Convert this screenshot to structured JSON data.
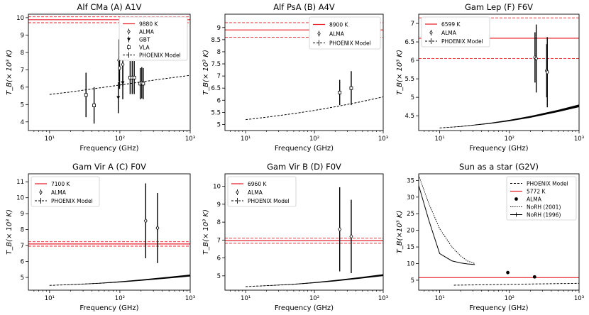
{
  "chart_data": [
    {
      "type": "line",
      "title": "Alf CMa (A)  A1V",
      "xlabel": "Frequency (GHz)",
      "ylabel": "T_B(× 10³ K)",
      "xscale": "log",
      "xlim": [
        5,
        1000
      ],
      "ylim": [
        3.5,
        10.2
      ],
      "xticks": [
        {
          "v": 10,
          "label": "10¹"
        },
        {
          "v": 100,
          "label": "10²"
        },
        {
          "v": 1000,
          "label": "10³"
        }
      ],
      "yticks": [
        4,
        5,
        6,
        7,
        8,
        9,
        10
      ],
      "hlines": [
        {
          "y": 9.88,
          "style": "solid",
          "color": "#e8222a"
        },
        {
          "y": 10.05,
          "style": "dashed",
          "color": "#e8222a"
        },
        {
          "y": 9.71,
          "style": "dashed",
          "color": "#e8222a"
        }
      ],
      "model": {
        "x": [
          10,
          20,
          50,
          100,
          200,
          500,
          1000
        ],
        "y": [
          5.58,
          5.72,
          5.95,
          6.12,
          6.3,
          6.52,
          6.68
        ],
        "band": 0
      },
      "points": [
        {
          "x": 33,
          "y": 5.55,
          "err": 1.28,
          "marker": "square"
        },
        {
          "x": 43,
          "y": 4.95,
          "err": 1.05,
          "marker": "square"
        },
        {
          "x": 97,
          "y": 7.55,
          "err": 1.2,
          "marker": "diamond"
        },
        {
          "x": 99,
          "y": 7.1,
          "err": 1.2,
          "marker": "diamond"
        },
        {
          "x": 95,
          "y": 5.4,
          "err": 0.9,
          "marker": "triangle"
        },
        {
          "x": 110,
          "y": 7.3,
          "err": 1.25,
          "marker": "diamond"
        },
        {
          "x": 110,
          "y": 6.25,
          "err": 0.95,
          "marker": "triangle"
        },
        {
          "x": 140,
          "y": 6.55,
          "err": 0.95,
          "marker": "square"
        },
        {
          "x": 150,
          "y": 6.55,
          "err": 0.95,
          "marker": "square"
        },
        {
          "x": 160,
          "y": 6.55,
          "err": 0.95,
          "marker": "square"
        },
        {
          "x": 195,
          "y": 6.2,
          "err": 0.9,
          "marker": "square"
        },
        {
          "x": 205,
          "y": 6.25,
          "err": 0.9,
          "marker": "square"
        },
        {
          "x": 215,
          "y": 6.2,
          "err": 0.9,
          "marker": "square"
        }
      ],
      "legend": {
        "loc": "top-right",
        "entries": [
          {
            "label": "9880 K",
            "kind": "line"
          },
          {
            "label": "ALMA",
            "kind": "diamond"
          },
          {
            "label": "GBT",
            "kind": "triangle"
          },
          {
            "label": "VLA",
            "kind": "square"
          },
          {
            "label": "PHOENIX Model",
            "kind": "errline"
          }
        ]
      }
    },
    {
      "type": "line",
      "title": "Alf PsA (B)  A4V",
      "xlabel": "Frequency (GHz)",
      "ylabel": "T_B(× 10³ K)",
      "xscale": "log",
      "xlim": [
        5,
        1000
      ],
      "ylim": [
        4.75,
        9.55
      ],
      "xticks": [
        {
          "v": 10,
          "label": "10¹"
        },
        {
          "v": 100,
          "label": "10²"
        },
        {
          "v": 1000,
          "label": "10³"
        }
      ],
      "yticks": [
        5.0,
        5.5,
        6.0,
        6.5,
        7.0,
        7.5,
        8.0,
        8.5,
        9.0
      ],
      "hlines": [
        {
          "y": 8.9,
          "style": "solid",
          "color": "#e8222a"
        },
        {
          "y": 9.2,
          "style": "dashed",
          "color": "#e8222a"
        },
        {
          "y": 8.6,
          "style": "dashed",
          "color": "#e8222a"
        }
      ],
      "model": {
        "x": [
          10,
          20,
          50,
          100,
          200,
          500,
          1000
        ],
        "y": [
          5.2,
          5.3,
          5.45,
          5.58,
          5.73,
          5.95,
          6.14
        ],
        "band": 0
      },
      "points": [
        {
          "x": 233,
          "y": 6.32,
          "err": 0.52,
          "marker": "square"
        },
        {
          "x": 343,
          "y": 6.5,
          "err": 0.7,
          "marker": "square"
        }
      ],
      "legend": {
        "loc": "top-right",
        "entries": [
          {
            "label": "8900 K",
            "kind": "line"
          },
          {
            "label": "ALMA",
            "kind": "diamond"
          },
          {
            "label": "PHOENIX Model",
            "kind": "errline"
          }
        ]
      }
    },
    {
      "type": "line",
      "title": "Gam Lep (F)  F6V",
      "xlabel": "Frequency (GHz)",
      "ylabel": "T_B(× 10³ K)",
      "xscale": "log",
      "xlim": [
        5,
        1000
      ],
      "ylim": [
        4.1,
        7.25
      ],
      "xticks": [
        {
          "v": 10,
          "label": "10¹"
        },
        {
          "v": 100,
          "label": "10²"
        },
        {
          "v": 1000,
          "label": "10³"
        }
      ],
      "yticks": [
        4.5,
        5.0,
        5.5,
        6.0,
        6.5,
        7.0
      ],
      "hlines": [
        {
          "y": 6.6,
          "style": "solid",
          "color": "#e8222a"
        },
        {
          "y": 7.15,
          "style": "dashed",
          "color": "#e8222a"
        },
        {
          "y": 6.05,
          "style": "dashed",
          "color": "#e8222a"
        }
      ],
      "model": {
        "x": [
          10,
          20,
          50,
          100,
          200,
          500,
          1000
        ],
        "y": [
          4.17,
          4.21,
          4.29,
          4.37,
          4.47,
          4.63,
          4.77
        ],
        "band": 0.07
      },
      "points": [
        {
          "x": 233,
          "y": 6.08,
          "err": 0.68,
          "marker": "diamond"
        },
        {
          "x": 243,
          "y": 6.05,
          "err": 0.92,
          "marker": "diamond"
        },
        {
          "x": 343,
          "y": 5.72,
          "err": 0.72,
          "marker": "diamond"
        },
        {
          "x": 350,
          "y": 5.68,
          "err": 0.95,
          "marker": "diamond"
        }
      ],
      "legend": {
        "loc": "top-left",
        "entries": [
          {
            "label": "6599 K",
            "kind": "line"
          },
          {
            "label": "ALMA",
            "kind": "diamond"
          },
          {
            "label": "PHOENIX Model",
            "kind": "errline"
          }
        ]
      }
    },
    {
      "type": "line",
      "title": "Gam Vir A (C)  F0V",
      "xlabel": "Frequency (GHz)",
      "ylabel": "T_B(× 10³ K)",
      "xscale": "log",
      "xlim": [
        5,
        1000
      ],
      "ylim": [
        4.2,
        11.5
      ],
      "xticks": [
        {
          "v": 10,
          "label": "10¹"
        },
        {
          "v": 100,
          "label": "10²"
        },
        {
          "v": 1000,
          "label": "10³"
        }
      ],
      "yticks": [
        5,
        6,
        7,
        8,
        9,
        10,
        11
      ],
      "hlines": [
        {
          "y": 7.1,
          "style": "solid",
          "color": "#e8222a"
        },
        {
          "y": 7.24,
          "style": "dashed",
          "color": "#e8222a"
        },
        {
          "y": 6.96,
          "style": "dashed",
          "color": "#e8222a"
        }
      ],
      "model": {
        "x": [
          10,
          20,
          50,
          100,
          200,
          500,
          1000
        ],
        "y": [
          4.5,
          4.55,
          4.63,
          4.72,
          4.83,
          4.99,
          5.12
        ],
        "band": 0.12
      },
      "points": [
        {
          "x": 233,
          "y": 8.55,
          "err": 2.35,
          "marker": "diamond"
        },
        {
          "x": 343,
          "y": 8.1,
          "err": 2.2,
          "marker": "diamond"
        }
      ],
      "legend": {
        "loc": "top-left",
        "entries": [
          {
            "label": "7100 K",
            "kind": "line"
          },
          {
            "label": "ALMA",
            "kind": "diamond"
          },
          {
            "label": "PHOENIX Model",
            "kind": "errline"
          }
        ]
      }
    },
    {
      "type": "line",
      "title": "Gam Vir B (D)  F0V",
      "xlabel": "Frequency (GHz)",
      "ylabel": "T_B(× 10³ K)",
      "xscale": "log",
      "xlim": [
        5,
        1000
      ],
      "ylim": [
        4.2,
        10.7
      ],
      "xticks": [
        {
          "v": 10,
          "label": "10¹"
        },
        {
          "v": 100,
          "label": "10²"
        },
        {
          "v": 1000,
          "label": "10³"
        }
      ],
      "yticks": [
        5,
        6,
        7,
        8,
        9,
        10
      ],
      "hlines": [
        {
          "y": 6.96,
          "style": "solid",
          "color": "#e8222a"
        },
        {
          "y": 7.1,
          "style": "dashed",
          "color": "#e8222a"
        },
        {
          "y": 6.82,
          "style": "dashed",
          "color": "#e8222a"
        }
      ],
      "model": {
        "x": [
          10,
          20,
          50,
          100,
          200,
          500,
          1000
        ],
        "y": [
          4.4,
          4.45,
          4.53,
          4.62,
          4.73,
          4.9,
          5.04
        ],
        "band": 0.1
      },
      "points": [
        {
          "x": 233,
          "y": 7.6,
          "err": 2.35,
          "marker": "diamond"
        },
        {
          "x": 343,
          "y": 7.2,
          "err": 2.05,
          "marker": "diamond"
        }
      ],
      "legend": {
        "loc": "top-left",
        "entries": [
          {
            "label": "6960 K",
            "kind": "line"
          },
          {
            "label": "ALMA",
            "kind": "diamond"
          },
          {
            "label": "PHOENIX Model",
            "kind": "errline"
          }
        ]
      }
    },
    {
      "type": "line",
      "title": "Sun as a star (G2V)",
      "xlabel": "Frequency (GHz)",
      "ylabel": "T_B(×10³ K)",
      "xscale": "log",
      "xlim": [
        5,
        1000
      ],
      "ylim": [
        2,
        37
      ],
      "xticks": [
        {
          "v": 10,
          "label": "10¹"
        },
        {
          "v": 100,
          "label": "10²"
        },
        {
          "v": 1000,
          "label": "10³"
        }
      ],
      "yticks": [
        5,
        10,
        15,
        20,
        25,
        30,
        35
      ],
      "hlines": [
        {
          "y": 5.772,
          "style": "solid",
          "color": "#e8222a"
        }
      ],
      "model": {
        "x": [
          16,
          50,
          100,
          200,
          500,
          1000
        ],
        "y": [
          3.5,
          3.65,
          3.75,
          3.85,
          3.98,
          4.05
        ],
        "band": 0
      },
      "extra_series": [
        {
          "name": "NoRH (2001)",
          "style": "dotted",
          "x": [
            5,
            7,
            10,
            15,
            20,
            25,
            32
          ],
          "y": [
            36.5,
            28,
            20.5,
            15,
            12.3,
            10.8,
            10
          ]
        },
        {
          "name": "NoRH (1996)",
          "style": "solid",
          "x": [
            5,
            7,
            10,
            15,
            20,
            25,
            32
          ],
          "y": [
            33.5,
            23,
            13,
            10.8,
            10.2,
            9.9,
            9.7
          ]
        }
      ],
      "points": [
        {
          "x": 95,
          "y": 7.3,
          "err": 0,
          "marker": "dot"
        },
        {
          "x": 230,
          "y": 6.0,
          "err": 0,
          "marker": "dot"
        }
      ],
      "legend": {
        "loc": "top-right",
        "entries": [
          {
            "label": "PHOENIX Model",
            "kind": "dashed"
          },
          {
            "label": "5772 K",
            "kind": "line"
          },
          {
            "label": "ALMA",
            "kind": "dot"
          },
          {
            "label": "NoRH (2001)",
            "kind": "dotted"
          },
          {
            "label": "NoRH (1996)",
            "kind": "solid"
          }
        ]
      }
    }
  ]
}
